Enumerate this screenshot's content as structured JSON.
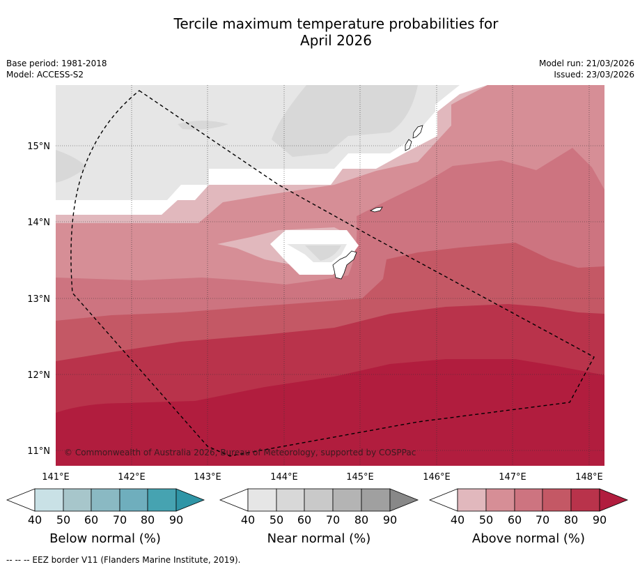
{
  "title": {
    "line1": "Tercile maximum temperature probabilities for",
    "line2": "April 2026"
  },
  "meta": {
    "base_period": "Base period: 1981-2018",
    "model": "Model: ACCESS-S2",
    "model_run": "Model run: 21/03/2026",
    "issued": "Issued: 23/03/2026"
  },
  "axes": {
    "lat_labels": [
      "15°N",
      "14°N",
      "13°N",
      "12°N",
      "11°N"
    ],
    "lon_labels": [
      "141°E",
      "142°E",
      "143°E",
      "144°E",
      "145°E",
      "146°E",
      "147°E",
      "148°E"
    ]
  },
  "copyright": "© Commonwealth of Australia 2026, Bureau of Meteorology, supported by COSPPac",
  "colorbars": [
    {
      "label": "Below normal (%)",
      "ticks": [
        "40",
        "50",
        "60",
        "70",
        "80",
        "90"
      ],
      "low_color": "#ffffff",
      "colors": [
        "#c9e1e6",
        "#a7c6cb",
        "#8ab9c3",
        "#6faebd",
        "#46a3b1"
      ],
      "high_color": "#2f95a6"
    },
    {
      "label": "Near normal (%)",
      "ticks": [
        "40",
        "50",
        "60",
        "70",
        "80",
        "90"
      ],
      "low_color": "#ffffff",
      "colors": [
        "#e6e6e6",
        "#d8d8d8",
        "#c9c9c9",
        "#b4b4b4",
        "#a0a0a0"
      ],
      "high_color": "#888888"
    },
    {
      "label": "Above normal (%)",
      "ticks": [
        "40",
        "50",
        "60",
        "70",
        "80",
        "90"
      ],
      "low_color": "#ffffff",
      "colors": [
        "#e1b8bd",
        "#d68e96",
        "#cd7480",
        "#c45865",
        "#b9334b"
      ],
      "high_color": "#b11d3e"
    }
  ],
  "footnote": "--  --  -- EEZ border V11 (Flanders Marine Institute, 2019)."
}
